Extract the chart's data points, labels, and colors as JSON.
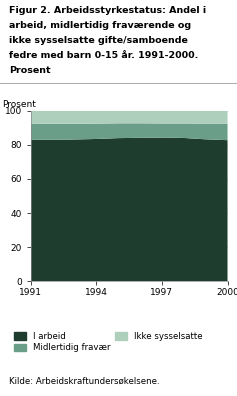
{
  "title_lines": [
    "Figur 2. Arbeidsstyrkestatus: Andel i",
    "arbeid, midlertidig fraværende og",
    "ikke sysselsatte gifte/samboende",
    "fedre med barn 0-15 år. 1991-2000.",
    "Prosent"
  ],
  "ylabel": "Prosent",
  "source": "Kilde: Arbeidskraftundersøkelsene.",
  "years": [
    1991,
    1992,
    1993,
    1994,
    1995,
    1996,
    1997,
    1998,
    1999,
    2000
  ],
  "i_arbeid": [
    83.0,
    83.0,
    83.2,
    83.5,
    84.0,
    84.2,
    84.3,
    84.1,
    83.3,
    82.8
  ],
  "midlertidig": [
    9.5,
    9.4,
    9.2,
    9.0,
    8.7,
    8.5,
    8.3,
    8.5,
    9.2,
    9.7
  ],
  "ikke_sysselsatte": [
    7.5,
    7.6,
    7.6,
    7.5,
    7.3,
    7.3,
    7.4,
    7.4,
    7.5,
    7.5
  ],
  "color_i_arbeid": "#1e3d2f",
  "color_midlertidig": "#6a9e88",
  "color_ikke_sysselsatte": "#aecfbc",
  "legend_labels": [
    "I arbeid",
    "Midlertidig fravær",
    "Ikke sysselsatte"
  ],
  "xticks": [
    1991,
    1994,
    1997,
    2000
  ],
  "yticks": [
    0,
    20,
    40,
    60,
    80,
    100
  ],
  "ylim": [
    0,
    100
  ],
  "xlim": [
    1991,
    2000
  ],
  "figsize": [
    2.37,
    3.96
  ],
  "dpi": 100
}
